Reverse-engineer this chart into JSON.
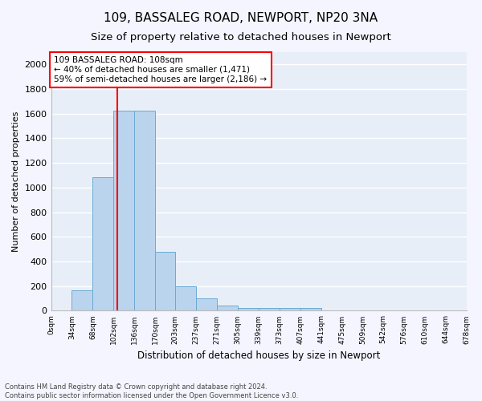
{
  "title": "109, BASSALEG ROAD, NEWPORT, NP20 3NA",
  "subtitle": "Size of property relative to detached houses in Newport",
  "xlabel": "Distribution of detached houses by size in Newport",
  "ylabel": "Number of detached properties",
  "footnote1": "Contains HM Land Registry data © Crown copyright and database right 2024.",
  "footnote2": "Contains public sector information licensed under the Open Government Licence v3.0.",
  "annotation_line1": "109 BASSALEG ROAD: 108sqm",
  "annotation_line2": "← 40% of detached houses are smaller (1,471)",
  "annotation_line3": "59% of semi-detached houses are larger (2,186) →",
  "bar_color": "#bad4ee",
  "bar_edge_color": "#6aaad4",
  "vline_color": "red",
  "vline_x": 108,
  "bin_edges": [
    0,
    34,
    68,
    102,
    136,
    170,
    203,
    237,
    271,
    305,
    339,
    373,
    407,
    441,
    475,
    509,
    542,
    576,
    610,
    644,
    678
  ],
  "bar_heights": [
    0,
    165,
    1085,
    1625,
    1625,
    480,
    200,
    100,
    45,
    25,
    20,
    20,
    20,
    0,
    0,
    0,
    0,
    0,
    0,
    0
  ],
  "ylim": [
    0,
    2100
  ],
  "yticks": [
    0,
    200,
    400,
    600,
    800,
    1000,
    1200,
    1400,
    1600,
    1800,
    2000
  ],
  "background_color": "#e8eef8",
  "grid_color": "#ffffff",
  "fig_bg_color": "#f5f5ff",
  "tick_labels": [
    "0sqm",
    "34sqm",
    "68sqm",
    "102sqm",
    "136sqm",
    "170sqm",
    "203sqm",
    "237sqm",
    "271sqm",
    "305sqm",
    "339sqm",
    "373sqm",
    "407sqm",
    "441sqm",
    "475sqm",
    "509sqm",
    "542sqm",
    "576sqm",
    "610sqm",
    "644sqm",
    "678sqm"
  ]
}
